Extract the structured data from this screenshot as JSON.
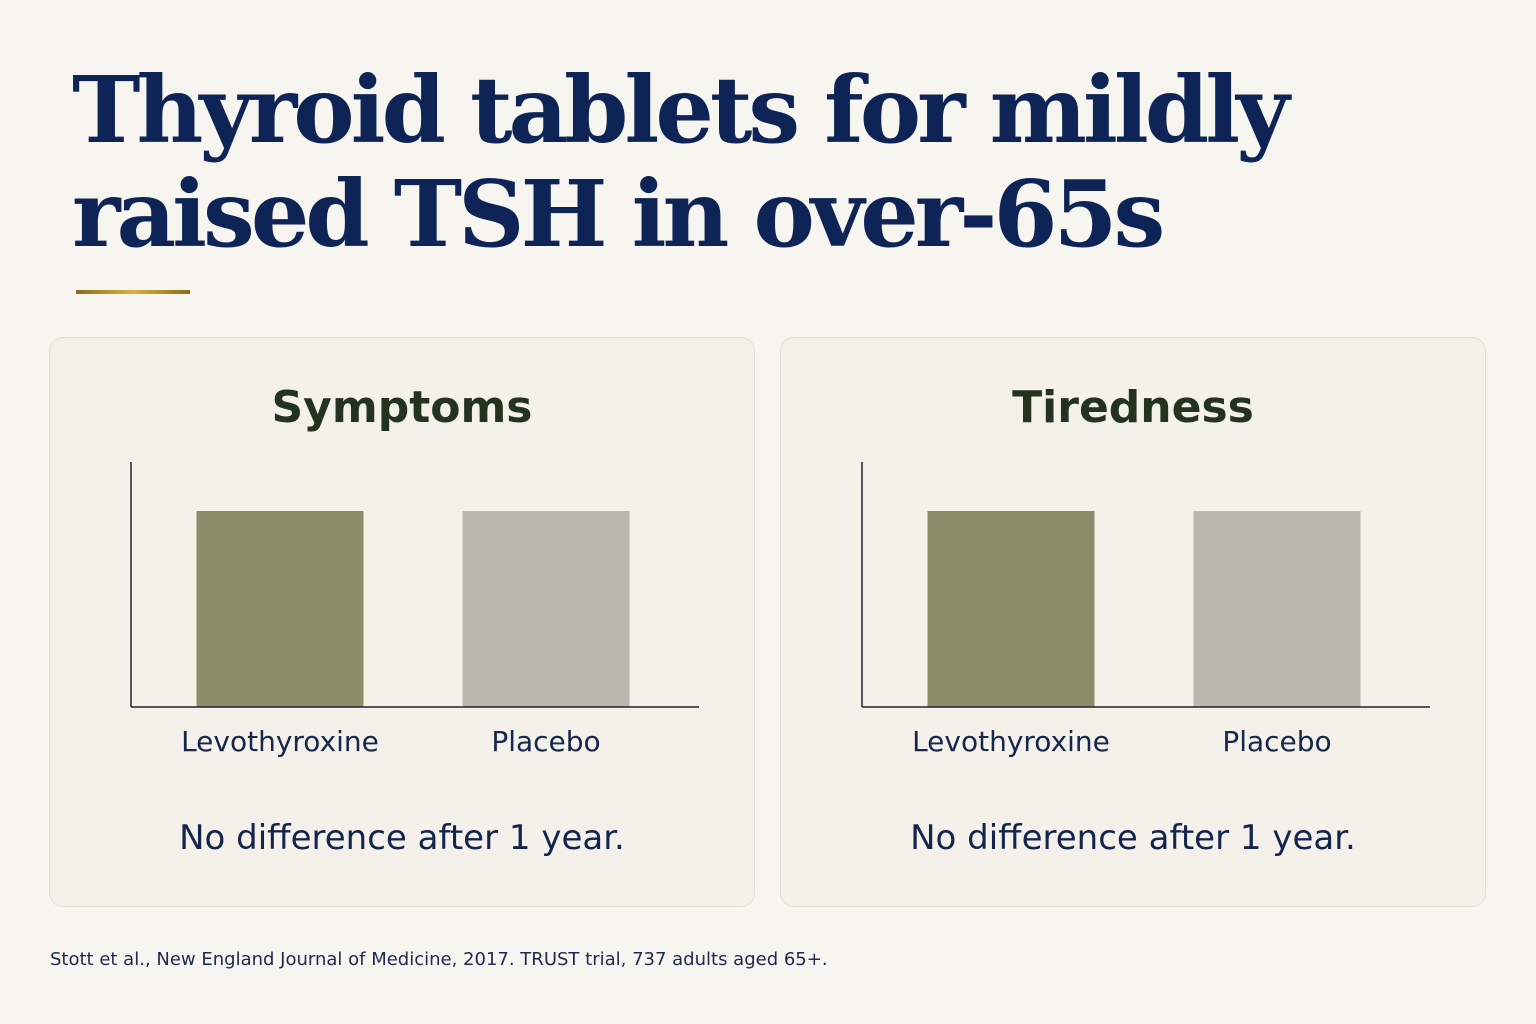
{
  "title": "Thyroid tablets for mildly raised TSH in over-65s",
  "source": "Stott et al., New England Journal of Medicine, 2017. TRUST trial, 737 adults aged 65+.",
  "colors": {
    "levothyroxine": "#8b8c68",
    "placebo": "#bbb8ad",
    "axis": "#1c2433"
  },
  "chart_data": [
    {
      "type": "bar",
      "title": "Symptoms",
      "categories": [
        "Levothyroxine",
        "Placebo"
      ],
      "values": [
        80,
        80
      ],
      "ylim": [
        0,
        100
      ],
      "grid": false,
      "caption": "No difference after 1 year."
    },
    {
      "type": "bar",
      "title": "Tiredness",
      "categories": [
        "Levothyroxine",
        "Placebo"
      ],
      "values": [
        80,
        80
      ],
      "ylim": [
        0,
        100
      ],
      "grid": false,
      "caption": "No difference after 1 year."
    }
  ]
}
